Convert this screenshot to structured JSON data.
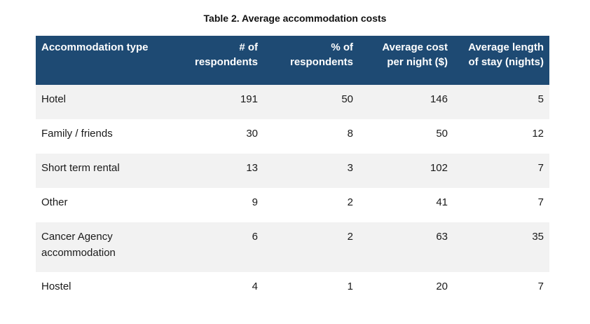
{
  "caption": "Table 2. Average accommodation costs",
  "table": {
    "headers": [
      "Accommodation type",
      "# of respondents",
      "% of respondents",
      "Average cost per night ($)",
      "Average length of stay (nights)"
    ],
    "rows": [
      [
        "Hotel",
        "191",
        "50",
        "146",
        "5"
      ],
      [
        "Family / friends",
        "30",
        "8",
        "50",
        "12"
      ],
      [
        "Short term rental",
        "13",
        "3",
        "102",
        "7"
      ],
      [
        "Other",
        "9",
        "2",
        "41",
        "7"
      ],
      [
        "Cancer Agency accommodation",
        "6",
        "2",
        "63",
        "35"
      ],
      [
        "Hostel",
        "4",
        "1",
        "20",
        "7"
      ]
    ]
  },
  "colors": {
    "header_background": "#1e4a73",
    "header_text": "#ffffff",
    "row_shaded": "#f2f2f2"
  }
}
